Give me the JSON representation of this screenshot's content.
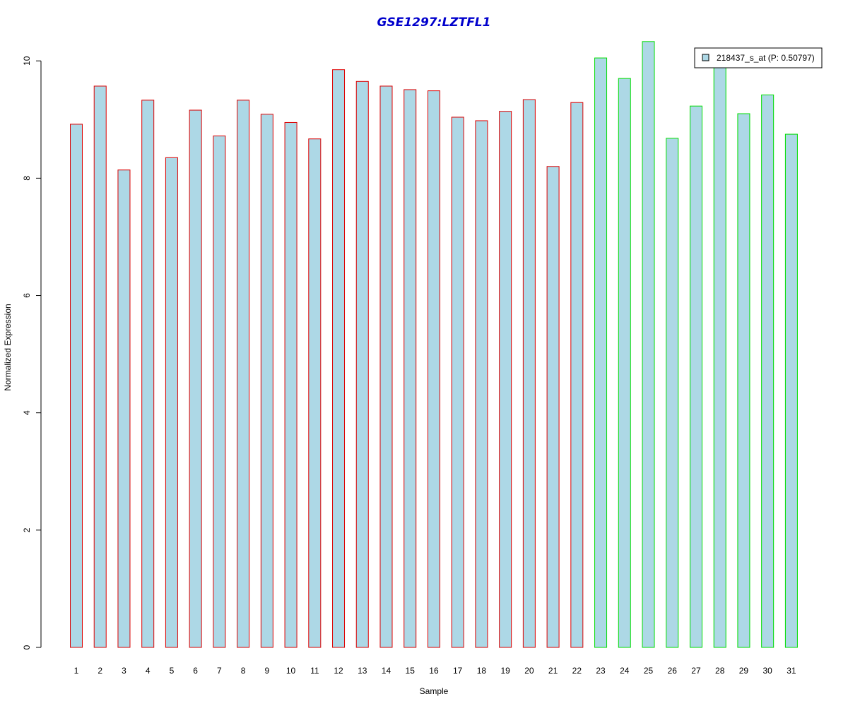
{
  "chart_data": {
    "type": "bar",
    "title": "GSE1297:LZTFL1",
    "xlabel": "Sample",
    "ylabel": "Normalized Expression",
    "ylim": [
      0,
      10.4
    ],
    "yticks": [
      0,
      2,
      4,
      6,
      8,
      10
    ],
    "grid": false,
    "legend_position": "top-right",
    "categories": [
      "1",
      "2",
      "3",
      "4",
      "5",
      "6",
      "7",
      "8",
      "9",
      "10",
      "11",
      "12",
      "13",
      "14",
      "15",
      "16",
      "17",
      "18",
      "19",
      "20",
      "21",
      "22",
      "23",
      "24",
      "25",
      "26",
      "27",
      "28",
      "29",
      "30",
      "31"
    ],
    "series": [
      {
        "name": "218437_s_at (P: 0.50797)",
        "values": [
          8.92,
          9.57,
          8.14,
          9.33,
          8.35,
          9.16,
          8.72,
          9.33,
          9.09,
          8.95,
          8.67,
          9.85,
          9.65,
          9.57,
          9.51,
          9.49,
          9.04,
          8.98,
          9.14,
          9.34,
          8.2,
          9.29,
          10.05,
          9.7,
          10.33,
          8.68,
          9.23,
          9.9,
          9.1,
          9.42,
          8.75
        ]
      }
    ],
    "group_border_colors": [
      "#dd0000",
      "#dd0000",
      "#dd0000",
      "#dd0000",
      "#dd0000",
      "#dd0000",
      "#dd0000",
      "#dd0000",
      "#dd0000",
      "#dd0000",
      "#dd0000",
      "#dd0000",
      "#dd0000",
      "#dd0000",
      "#dd0000",
      "#dd0000",
      "#dd0000",
      "#dd0000",
      "#dd0000",
      "#dd0000",
      "#dd0000",
      "#dd0000",
      "#00dd00",
      "#00dd00",
      "#00dd00",
      "#00dd00",
      "#00dd00",
      "#00dd00",
      "#00dd00",
      "#00dd00",
      "#00dd00"
    ],
    "colors": {
      "bar_fill": "#add8e6",
      "title": "#0000cc",
      "axis": "#000000"
    }
  }
}
